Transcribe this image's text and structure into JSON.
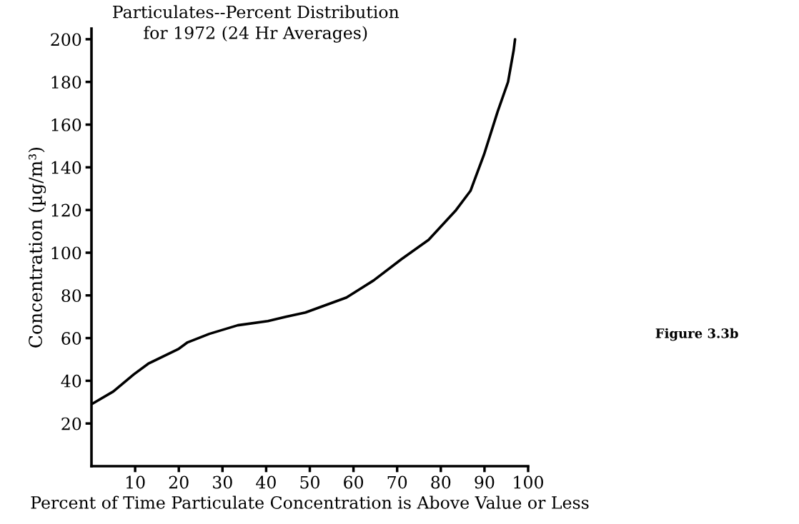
{
  "chart_data": {
    "type": "line",
    "title": "Particulates--Percent Distribution\nfor 1972 (24 Hr Averages)",
    "xlabel": "Percent of Time Particulate Concentration is Above Value or Less",
    "ylabel": "Concentration (µg/m³)",
    "annotations": [
      "Figure 3.3b"
    ],
    "x": [
      0,
      5,
      9.7,
      13,
      20,
      22,
      27,
      33.5,
      40.4,
      44.5,
      49,
      58.4,
      64.6,
      71,
      77.2,
      83.5,
      86.8,
      89.9,
      93,
      95.4,
      96.7,
      97
    ],
    "series": [
      {
        "color": "#000000",
        "values": [
          29,
          35,
          43,
          48,
          55,
          58,
          62,
          66,
          68,
          70,
          72,
          79,
          87,
          97,
          106,
          120,
          129,
          146,
          166,
          180,
          195,
          200
        ]
      }
    ],
    "xlim": [
      0,
      100
    ],
    "ylim": [
      0,
      205
    ],
    "xticks": [
      10,
      20,
      30,
      40,
      50,
      60,
      70,
      80,
      90,
      100
    ],
    "yticks": [
      20,
      40,
      60,
      80,
      100,
      120,
      140,
      160,
      180,
      200
    ],
    "grid": false,
    "legend": false,
    "marker": "none",
    "line_style": "solid"
  }
}
